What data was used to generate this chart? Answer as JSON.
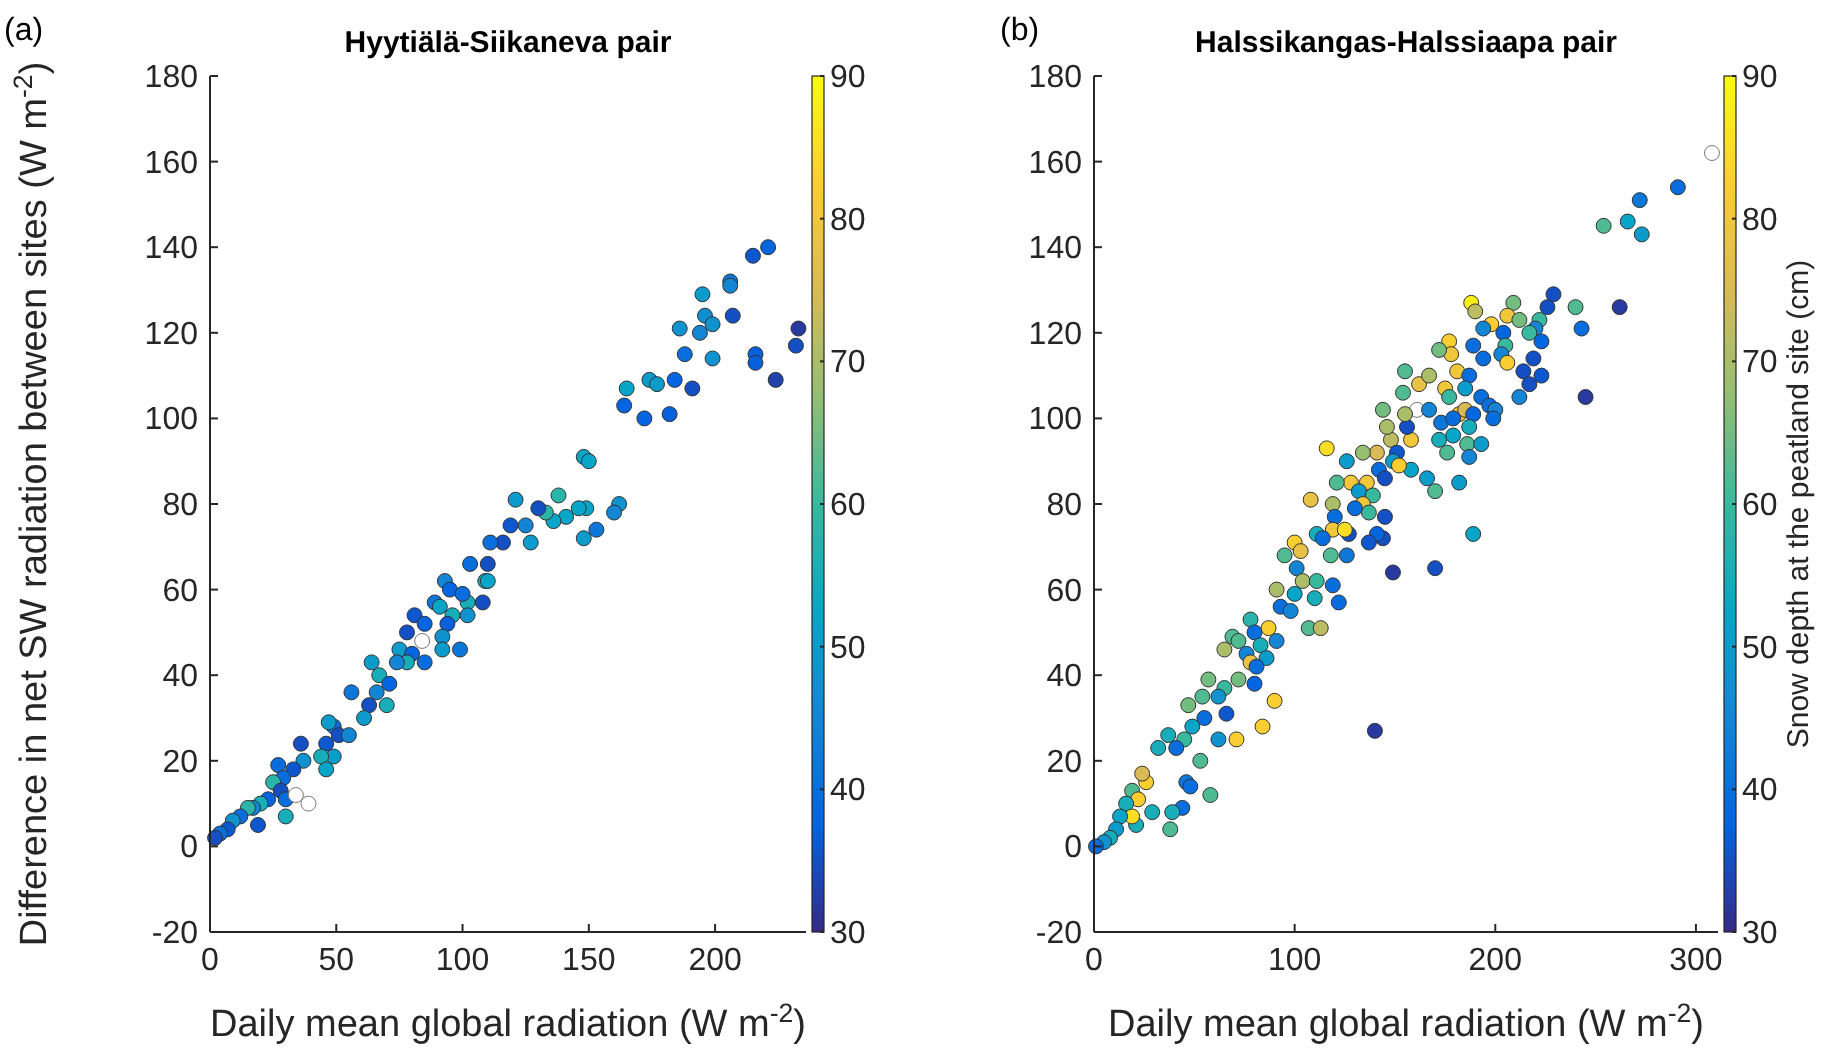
{
  "chart_data": [
    {
      "type": "scatter",
      "title": "Hyytiälä-Siikaneva pair",
      "xlabel": "Daily mean global radiation (W m$^{-2}$)",
      "ylabel": "Difference in net SW radiation between sites (W m$^{-2}$)",
      "annotations": [
        "(a)"
      ],
      "marker": "circle",
      "xlim": [
        0,
        236
      ],
      "xticks": [
        0,
        50,
        100,
        150,
        200
      ],
      "ylim": [
        -20,
        180
      ],
      "yticks": [
        -20,
        0,
        20,
        40,
        60,
        80,
        100,
        120,
        140,
        160,
        180
      ],
      "clim": [
        30,
        90
      ],
      "cticks": [
        30,
        40,
        50,
        60,
        70,
        80,
        90
      ],
      "x": [
        221,
        215,
        233,
        232,
        224,
        216,
        216,
        206,
        206,
        207,
        195,
        196,
        199,
        194,
        186,
        188,
        199,
        184,
        191,
        165,
        174,
        177,
        164,
        172,
        182,
        148,
        150,
        162,
        160,
        153,
        148,
        149,
        146,
        138,
        141,
        136,
        133,
        130,
        121,
        119,
        125,
        127,
        116,
        111,
        110,
        103,
        109,
        110,
        108,
        102,
        102,
        93,
        95,
        100,
        89,
        91,
        96,
        94,
        92,
        99,
        92,
        81,
        85,
        78,
        75,
        84,
        85,
        80,
        78,
        74,
        64,
        67,
        71,
        70,
        66,
        63,
        61,
        56,
        49,
        51,
        47,
        55,
        46,
        49,
        44,
        46,
        36,
        37,
        33,
        27,
        29,
        25,
        28,
        30,
        34,
        39,
        30,
        23,
        20,
        17,
        15,
        12,
        19,
        9,
        7,
        4,
        2
      ],
      "values": [
        140,
        138,
        121,
        117,
        109,
        115,
        113,
        132,
        131,
        124,
        129,
        124,
        122,
        120,
        121,
        115,
        114,
        109,
        107,
        107,
        109,
        108,
        103,
        100,
        101,
        91,
        90,
        80,
        78,
        74,
        72,
        79,
        79,
        82,
        77,
        76,
        78,
        79,
        81,
        75,
        75,
        71,
        71,
        71,
        66,
        66,
        62,
        62,
        57,
        57,
        54,
        62,
        60,
        59,
        57,
        56,
        54,
        52,
        49,
        46,
        46,
        54,
        52,
        50,
        46,
        48,
        43,
        45,
        43,
        43,
        43,
        40,
        38,
        33,
        36,
        33,
        30,
        36,
        28,
        26,
        29,
        26,
        24,
        21,
        21,
        18,
        24,
        20,
        18,
        19,
        16,
        15,
        13,
        11,
        12,
        10,
        7,
        11,
        10,
        9,
        9,
        7,
        5,
        6,
        4,
        3,
        2
      ],
      "cvalues": [
        38,
        36,
        32,
        35,
        33,
        37,
        37,
        42,
        45,
        35,
        50,
        47,
        48,
        45,
        48,
        40,
        48,
        38,
        35,
        52,
        50,
        50,
        38,
        38,
        37,
        52,
        52,
        48,
        45,
        42,
        50,
        52,
        52,
        58,
        52,
        52,
        58,
        35,
        50,
        36,
        45,
        50,
        35,
        40,
        35,
        40,
        55,
        52,
        35,
        55,
        48,
        45,
        38,
        40,
        42,
        52,
        55,
        37,
        48,
        42,
        50,
        36,
        38,
        35,
        50,
        null,
        40,
        38,
        55,
        45,
        50,
        55,
        38,
        55,
        45,
        35,
        50,
        42,
        40,
        35,
        50,
        45,
        36,
        50,
        55,
        52,
        35,
        48,
        36,
        40,
        40,
        58,
        35,
        40,
        null,
        null,
        55,
        38,
        55,
        45,
        58,
        40,
        36,
        48,
        36,
        40,
        35
      ]
    },
    {
      "type": "scatter",
      "title": "Halssikangas-Halssiaapa pair",
      "xlabel": "Daily mean global radiation (W m$^{-2}$)",
      "clabel": "Snow depth at the peatland site (cm)",
      "annotations": [
        "(b)"
      ],
      "marker": "circle",
      "xlim": [
        0,
        311
      ],
      "xticks": [
        0,
        100,
        200,
        300
      ],
      "ylim": [
        -20,
        180
      ],
      "yticks": [
        -20,
        0,
        20,
        40,
        60,
        80,
        100,
        120,
        140,
        160,
        180
      ],
      "clim": [
        30,
        90
      ],
      "cticks": [
        30,
        40,
        50,
        60,
        70,
        80,
        90
      ],
      "x": [
        308,
        291,
        272,
        266,
        273,
        254,
        229,
        226,
        240,
        262,
        243,
        245,
        209,
        188,
        190,
        206,
        198,
        212,
        222,
        194,
        204,
        220,
        217,
        223,
        219,
        214,
        223,
        217,
        212,
        205,
        203,
        206,
        189,
        194,
        177,
        178,
        172,
        181,
        187,
        162,
        167,
        155,
        154,
        175,
        177,
        185,
        193,
        197,
        182,
        185,
        189,
        200,
        199,
        161,
        167,
        173,
        179,
        179,
        187,
        186,
        193,
        187,
        172,
        176,
        158,
        148,
        151,
        156,
        158,
        166,
        182,
        170,
        189,
        170,
        149,
        116,
        155,
        144,
        146,
        149,
        142,
        145,
        152,
        141,
        134,
        126,
        128,
        136,
        132,
        139,
        134,
        137,
        145,
        144,
        141,
        137,
        130,
        127,
        121,
        119,
        120,
        108,
        111,
        119,
        125,
        114,
        118,
        126,
        100,
        103,
        95,
        101,
        104,
        111,
        119,
        110,
        122,
        91,
        93,
        100,
        107,
        113,
        98,
        78,
        87,
        80,
        91,
        83,
        69,
        65,
        76,
        72,
        86,
        78,
        81,
        80,
        72,
        65,
        57,
        54,
        62,
        55,
        66,
        90,
        84,
        62,
        71,
        47,
        49,
        45,
        37,
        41,
        32,
        53,
        46,
        48,
        58,
        44,
        29,
        39,
        38,
        21,
        26,
        24,
        19,
        22,
        16,
        19,
        13,
        11,
        8,
        5,
        1,
        140
      ],
      "values": [
        162,
        154,
        151,
        146,
        143,
        145,
        129,
        126,
        126,
        126,
        121,
        105,
        127,
        127,
        125,
        124,
        122,
        123,
        123,
        121,
        120,
        121,
        120,
        118,
        114,
        111,
        110,
        108,
        105,
        117,
        115,
        113,
        117,
        114,
        118,
        115,
        116,
        111,
        110,
        108,
        110,
        111,
        106,
        107,
        105,
        107,
        105,
        103,
        101,
        102,
        101,
        102,
        100,
        102,
        102,
        99,
        100,
        96,
        98,
        94,
        94,
        91,
        95,
        92,
        95,
        95,
        92,
        98,
        88,
        86,
        85,
        83,
        73,
        65,
        64,
        93,
        101,
        102,
        98,
        90,
        88,
        86,
        89,
        92,
        92,
        90,
        85,
        85,
        83,
        82,
        80,
        78,
        77,
        72,
        73,
        71,
        79,
        73,
        85,
        80,
        77,
        81,
        73,
        74,
        74,
        72,
        68,
        68,
        71,
        69,
        68,
        65,
        62,
        62,
        61,
        58,
        57,
        60,
        56,
        59,
        51,
        51,
        55,
        53,
        51,
        50,
        48,
        47,
        49,
        46,
        45,
        48,
        44,
        43,
        42,
        38,
        39,
        37,
        39,
        35,
        35,
        30,
        31,
        34,
        28,
        25,
        25,
        33,
        28,
        25,
        26,
        23,
        23,
        20,
        15,
        14,
        12,
        9,
        8,
        8,
        4,
        5,
        15,
        17,
        13,
        11,
        10,
        7,
        7,
        4,
        2,
        1,
        0,
        27
      ],
      "cvalues": [
        null,
        40,
        42,
        52,
        50,
        62,
        35,
        35,
        62,
        32,
        40,
        32,
        65,
        88,
        72,
        80,
        82,
        65,
        60,
        45,
        38,
        45,
        60,
        38,
        35,
        35,
        36,
        35,
        45,
        60,
        45,
        82,
        40,
        40,
        82,
        80,
        65,
        80,
        40,
        78,
        70,
        62,
        62,
        80,
        60,
        50,
        40,
        40,
        80,
        75,
        38,
        45,
        40,
        null,
        45,
        42,
        40,
        52,
        55,
        62,
        50,
        45,
        55,
        62,
        80,
        72,
        36,
        35,
        52,
        50,
        50,
        62,
        52,
        35,
        32,
        85,
        70,
        65,
        70,
        50,
        40,
        35,
        82,
        75,
        68,
        50,
        80,
        80,
        50,
        60,
        80,
        60,
        35,
        35,
        38,
        36,
        40,
        35,
        62,
        70,
        40,
        78,
        55,
        80,
        85,
        40,
        62,
        42,
        82,
        78,
        62,
        45,
        70,
        60,
        40,
        55,
        40,
        70,
        40,
        52,
        62,
        72,
        45,
        58,
        82,
        40,
        45,
        55,
        62,
        70,
        45,
        62,
        50,
        78,
        40,
        38,
        65,
        60,
        65,
        62,
        48,
        40,
        36,
        82,
        82,
        48,
        82,
        65,
        52,
        60,
        55,
        40,
        55,
        62,
        42,
        40,
        62,
        40,
        55,
        55,
        62,
        55,
        82,
        75,
        62,
        82,
        55,
        85,
        52,
        50,
        55,
        48,
        40,
        32
      ]
    }
  ]
}
